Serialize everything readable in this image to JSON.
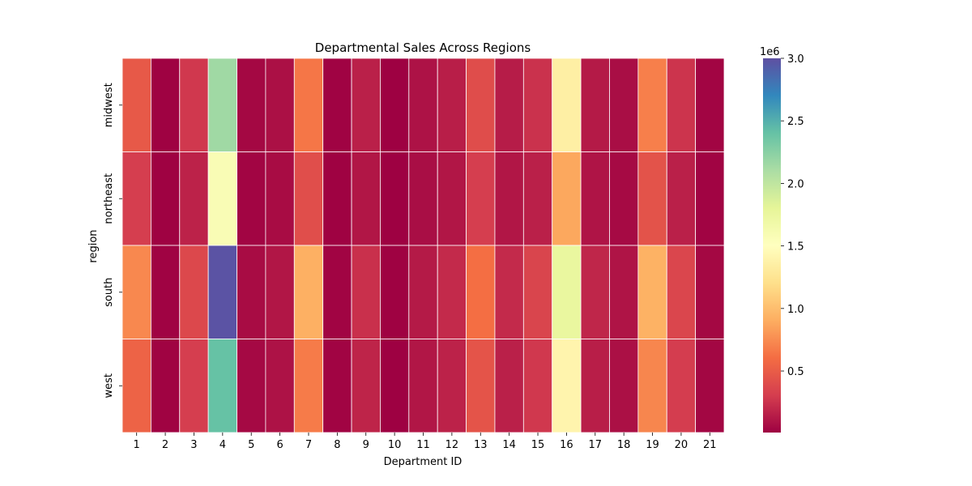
{
  "chart_data": {
    "type": "heatmap",
    "title": "Departmental Sales Across Regions",
    "xlabel": "Department ID",
    "ylabel": "region",
    "x_categories": [
      "1",
      "2",
      "3",
      "4",
      "5",
      "6",
      "7",
      "8",
      "9",
      "10",
      "11",
      "12",
      "13",
      "14",
      "15",
      "16",
      "17",
      "18",
      "19",
      "20",
      "21"
    ],
    "y_categories": [
      "midwest",
      "northeast",
      "south",
      "west"
    ],
    "values": [
      [
        480000,
        15000,
        280000,
        2150000,
        40000,
        80000,
        650000,
        20000,
        160000,
        10000,
        90000,
        150000,
        400000,
        140000,
        250000,
        1350000,
        130000,
        70000,
        690000,
        260000,
        30000
      ],
      [
        310000,
        12000,
        170000,
        1580000,
        30000,
        60000,
        410000,
        15000,
        110000,
        8000,
        70000,
        110000,
        310000,
        110000,
        160000,
        880000,
        100000,
        50000,
        440000,
        160000,
        25000
      ],
      [
        730000,
        20000,
        370000,
        2980000,
        60000,
        110000,
        920000,
        25000,
        240000,
        12000,
        130000,
        210000,
        610000,
        210000,
        350000,
        1750000,
        190000,
        100000,
        930000,
        360000,
        40000
      ],
      [
        540000,
        18000,
        310000,
        2400000,
        45000,
        90000,
        670000,
        22000,
        180000,
        10000,
        110000,
        170000,
        450000,
        160000,
        280000,
        1400000,
        150000,
        80000,
        720000,
        300000,
        35000
      ]
    ],
    "colorbar": {
      "colormap": "Spectral",
      "vmin": 8000,
      "vmax": 3000000,
      "ticks": [
        0.5,
        1.0,
        1.5,
        2.0,
        2.5,
        3.0
      ],
      "tick_labels": [
        "0.5",
        "1.0",
        "1.5",
        "2.0",
        "2.5",
        "3.0"
      ],
      "exponent_label": "1e6"
    }
  }
}
